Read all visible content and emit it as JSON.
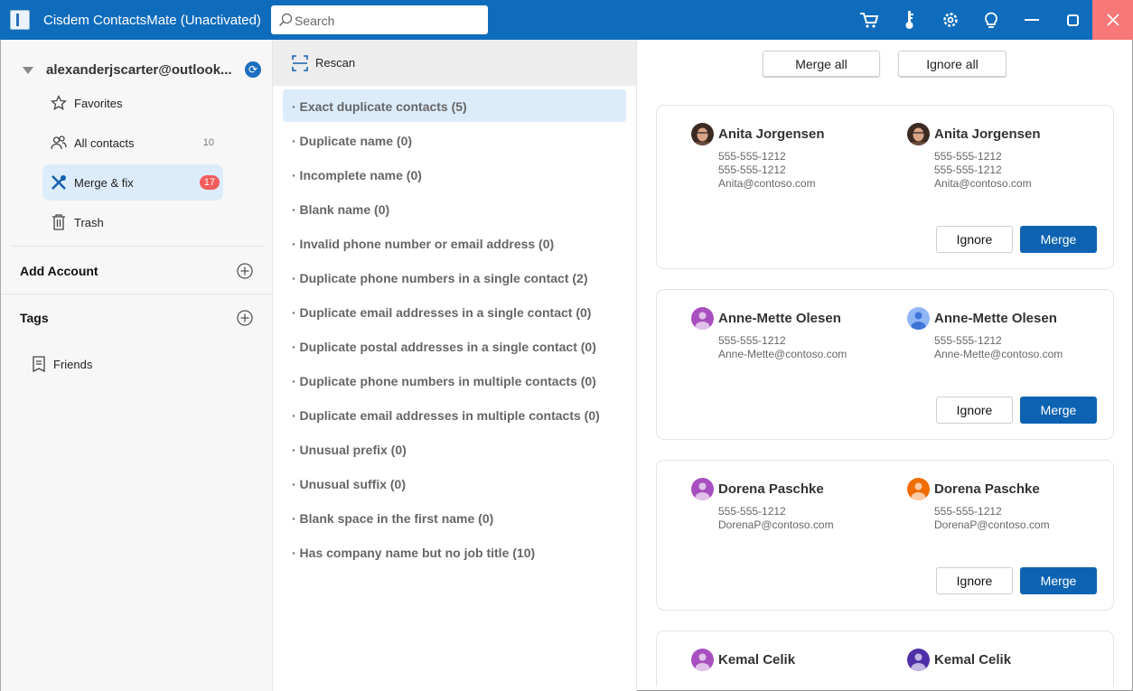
{
  "titlebar": {
    "title": "Cisdem ContactsMate (Unactivated)",
    "search_placeholder": "Search",
    "icons": [
      "cart-icon",
      "key-icon",
      "gear-icon",
      "lightbulb-icon",
      "minimize-icon",
      "maximize-icon",
      "close-icon"
    ]
  },
  "sidebar": {
    "account": "alexanderjscarter@outlook...",
    "items": [
      {
        "label": "Favorites",
        "icon": "star-icon"
      },
      {
        "label": "All contacts",
        "icon": "people-icon",
        "count": "10"
      },
      {
        "label": "Merge & fix",
        "icon": "tools-icon",
        "badge": "17",
        "active": true
      },
      {
        "label": "Trash",
        "icon": "trash-icon"
      }
    ],
    "add_account": "Add Account",
    "tags_label": "Tags",
    "tags": [
      {
        "label": "Friends"
      }
    ]
  },
  "middle": {
    "rescan": "Rescan",
    "categories": [
      "· Exact duplicate contacts (5)",
      "· Duplicate name (0)",
      "· Incomplete name (0)",
      "· Blank name (0)",
      "· Invalid phone number or email address (0)",
      "· Duplicate phone numbers in a single contact (2)",
      "· Duplicate email addresses in a single contact (0)",
      "· Duplicate postal addresses in a single contact (0)",
      "· Duplicate phone numbers in multiple contacts (0)",
      "· Duplicate email addresses in multiple contacts (0)",
      "· Unusual prefix (0)",
      "· Unusual suffix (0)",
      "· Blank space in the first name (0)",
      "· Has company name but no job title (10)"
    ]
  },
  "right": {
    "merge_all": "Merge all",
    "ignore_all": "Ignore all",
    "ignore_label": "Ignore",
    "merge_label": "Merge",
    "groups": [
      {
        "contacts": [
          {
            "name": "Anita Jorgensen",
            "lines": [
              "555-555-1212",
              "555-555-1212",
              "Anita@contoso.com"
            ],
            "avatar": "photo"
          },
          {
            "name": "Anita Jorgensen",
            "lines": [
              "555-555-1212",
              "555-555-1212",
              "Anita@contoso.com"
            ],
            "avatar": "photo"
          }
        ]
      },
      {
        "contacts": [
          {
            "name": "Anne-Mette Olesen",
            "lines": [
              "555-555-1212",
              "Anne-Mette@contoso.com"
            ],
            "avatar": "#a84fc0"
          },
          {
            "name": "Anne-Mette Olesen",
            "lines": [
              "555-555-1212",
              "Anne-Mette@contoso.com"
            ],
            "avatar": "#8fb6f5"
          }
        ]
      },
      {
        "contacts": [
          {
            "name": "Dorena Paschke",
            "lines": [
              "555-555-1212",
              "DorenaP@contoso.com"
            ],
            "avatar": "#a84fc0"
          },
          {
            "name": "Dorena Paschke",
            "lines": [
              "555-555-1212",
              "DorenaP@contoso.com"
            ],
            "avatar": "#ef6c00"
          }
        ]
      },
      {
        "contacts": [
          {
            "name": "Kemal Celik",
            "lines": [],
            "avatar": "#a84fc0"
          },
          {
            "name": "Kemal Celik",
            "lines": [],
            "avatar": "#4f2fa8"
          }
        ]
      }
    ]
  },
  "colors": {
    "accent": "#0f6cbd",
    "close": "#f87777",
    "badge": "#f25d5d",
    "selected": "#dcecfb"
  }
}
